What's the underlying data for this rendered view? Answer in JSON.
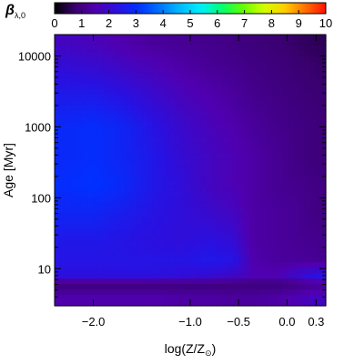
{
  "chart_data": {
    "type": "heatmap",
    "colorbar": {
      "label_symbol": "β",
      "label_subscript": "λ,0",
      "min": 0,
      "max": 10,
      "ticks": [
        "0",
        "1",
        "2",
        "3",
        "4",
        "5",
        "6",
        "7",
        "8",
        "9",
        "10"
      ],
      "placement": "top"
    },
    "x_axis": {
      "label_prefix": "log(Z/Z",
      "label_sub": "⊙",
      "label_suffix": ")",
      "range": [
        -2.4,
        0.4
      ],
      "ticks": [
        {
          "value": -2.0,
          "label": "−2.0"
        },
        {
          "value": -1.0,
          "label": "−1.0"
        },
        {
          "value": -0.5,
          "label": "−0.5"
        },
        {
          "value": 0.0,
          "label": "0.0"
        },
        {
          "value": 0.3,
          "label": "0.3"
        }
      ]
    },
    "y_axis": {
      "label": "Age [Myr]",
      "scale": "log",
      "range": [
        3,
        20000
      ],
      "ticks": [
        {
          "value": 10,
          "label": "10"
        },
        {
          "value": 100,
          "label": "100"
        },
        {
          "value": 1000,
          "label": "1000"
        },
        {
          "value": 10000,
          "label": "10000"
        }
      ]
    },
    "x_samples": [
      -2.3,
      -2.0,
      -1.7,
      -1.4,
      -1.1,
      -0.8,
      -0.55,
      -0.35,
      -0.1,
      0.1,
      0.3
    ],
    "y_samples": [
      4,
      6,
      8,
      13,
      25,
      60,
      150,
      400,
      1000,
      3000,
      8000,
      15000
    ],
    "values": [
      [
        1.5,
        1.5,
        1.5,
        1.5,
        1.4,
        1.4,
        1.3,
        1.3,
        1.4,
        1.6,
        1.8
      ],
      [
        0.9,
        0.9,
        0.9,
        0.9,
        0.9,
        0.9,
        0.9,
        0.9,
        0.9,
        1.0,
        1.2
      ],
      [
        2.3,
        2.3,
        2.3,
        2.3,
        2.2,
        2.1,
        1.9,
        1.6,
        1.6,
        2.0,
        2.4
      ],
      [
        2.4,
        2.4,
        2.4,
        2.4,
        2.4,
        2.5,
        2.4,
        1.5,
        1.3,
        1.3,
        1.2
      ],
      [
        2.5,
        2.5,
        2.4,
        2.3,
        2.2,
        2.3,
        2.1,
        1.4,
        1.3,
        1.2,
        1.1
      ],
      [
        2.8,
        2.8,
        2.6,
        2.4,
        2.2,
        2.0,
        1.8,
        1.4,
        1.3,
        1.2,
        1.0
      ],
      [
        3.0,
        3.1,
        2.9,
        2.5,
        2.2,
        1.8,
        1.6,
        1.4,
        1.2,
        1.1,
        1.0
      ],
      [
        2.9,
        3.0,
        2.8,
        2.5,
        2.1,
        1.8,
        1.6,
        1.4,
        1.2,
        1.0,
        0.9
      ],
      [
        2.9,
        3.0,
        2.8,
        2.4,
        2.0,
        1.7,
        1.5,
        1.3,
        1.1,
        1.0,
        0.9
      ],
      [
        2.5,
        2.5,
        2.3,
        2.0,
        1.7,
        1.5,
        1.3,
        1.1,
        1.0,
        0.9,
        0.8
      ],
      [
        2.1,
        2.0,
        1.8,
        1.6,
        1.4,
        1.2,
        1.1,
        1.0,
        0.9,
        0.8,
        0.7
      ],
      [
        1.8,
        1.7,
        1.5,
        1.3,
        1.2,
        1.1,
        1.0,
        0.9,
        0.8,
        0.7,
        0.6
      ]
    ],
    "colormap": [
      "#000000",
      "#3a0070",
      "#5000b0",
      "#2a10e0",
      "#0030ff",
      "#0070ff",
      "#00b8ff",
      "#00f0ff",
      "#00ff70",
      "#60ff00",
      "#d0ff00",
      "#ffd000",
      "#ff7000",
      "#ff1000"
    ]
  }
}
